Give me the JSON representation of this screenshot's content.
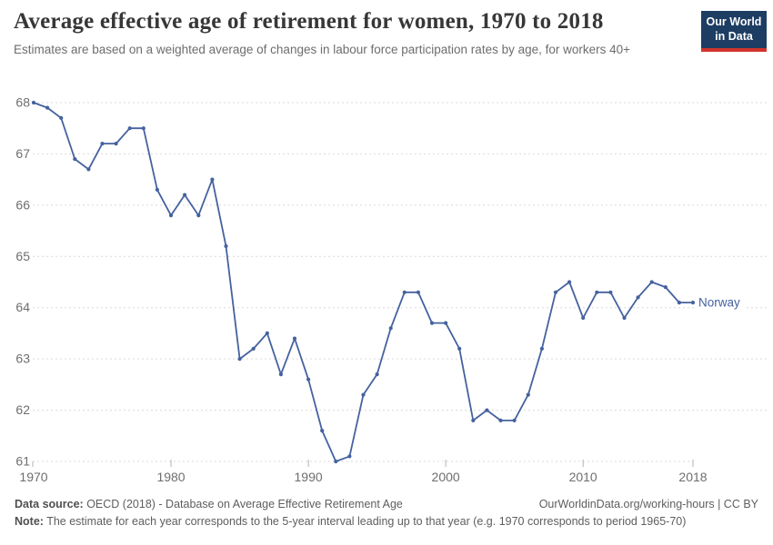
{
  "header": {
    "title": "Average effective age of retirement for women, 1970 to 2018",
    "subtitle": "Estimates are based on a weighted average of changes in labour force participation rates by age, for workers 40+",
    "logo": {
      "line1": "Our World",
      "line2": "in Data",
      "bg_color": "#1d3d63",
      "bar_color": "#d0342c"
    }
  },
  "chart_data": {
    "type": "line",
    "title": "Average effective age of retirement for women, 1970 to 2018",
    "subtitle": "Estimates are based on a weighted average of changes in labour force participation rates by age, for workers 40+",
    "xlabel": "",
    "ylabel": "",
    "xlim": [
      1970,
      2018
    ],
    "ylim": [
      61,
      68
    ],
    "grid": "horizontal-dashed",
    "legend_position": "end-of-line",
    "x_ticks": [
      1970,
      1980,
      1990,
      2000,
      2010,
      2018
    ],
    "y_ticks": [
      61,
      62,
      63,
      64,
      65,
      66,
      67,
      68
    ],
    "x": [
      1970,
      1971,
      1972,
      1973,
      1974,
      1975,
      1976,
      1977,
      1978,
      1979,
      1980,
      1981,
      1982,
      1983,
      1984,
      1985,
      1986,
      1987,
      1988,
      1989,
      1990,
      1991,
      1992,
      1993,
      1994,
      1995,
      1996,
      1997,
      1998,
      1999,
      2000,
      2001,
      2002,
      2003,
      2004,
      2005,
      2006,
      2007,
      2008,
      2009,
      2010,
      2011,
      2012,
      2013,
      2014,
      2015,
      2016,
      2017,
      2018
    ],
    "series": [
      {
        "name": "Norway",
        "color": "#45629f",
        "values": [
          68.0,
          67.9,
          67.7,
          66.9,
          66.7,
          67.2,
          67.2,
          67.5,
          67.5,
          66.3,
          65.8,
          66.2,
          65.8,
          66.5,
          65.2,
          63.0,
          63.2,
          63.5,
          62.7,
          63.4,
          62.6,
          61.6,
          61.0,
          61.1,
          62.3,
          62.7,
          63.6,
          64.3,
          64.3,
          63.7,
          63.7,
          63.2,
          61.8,
          62.0,
          61.8,
          61.8,
          62.3,
          63.2,
          64.3,
          64.5,
          63.8,
          64.3,
          64.3,
          63.8,
          64.2,
          64.5,
          64.4,
          64.1,
          64.1
        ]
      }
    ]
  },
  "footer": {
    "source_label": "Data source:",
    "source_text": " OECD (2018) - Database on Average Effective Retirement Age",
    "link": "OurWorldinData.org/working-hours | CC BY",
    "note_label": "Note:",
    "note_text": " The estimate for each year corresponds to the 5-year interval leading up to that year (e.g. 1970 corresponds to period 1965-70)"
  }
}
